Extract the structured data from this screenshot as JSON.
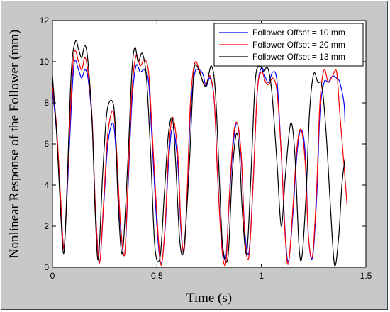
{
  "chart_data": {
    "type": "line",
    "title": "",
    "xlabel": "Time (s)",
    "ylabel": "Nonlinear Response of the Follower (mm)",
    "xlim": [
      0,
      1.5
    ],
    "ylim": [
      0,
      12
    ],
    "xticks": [
      "0",
      "0.5",
      "1",
      "1.5"
    ],
    "xtick_values": [
      0,
      0.5,
      1,
      1.5
    ],
    "yticks": [
      "0",
      "2",
      "4",
      "6",
      "8",
      "10",
      "12"
    ],
    "ytick_values": [
      0,
      2,
      4,
      6,
      8,
      10,
      12
    ],
    "grid": false,
    "legend_position": "top-right",
    "series": [
      {
        "name": "Follower Offset = 10 mm",
        "color": "#0000ff",
        "x": [
          0,
          0.02,
          0.04,
          0.055,
          0.07,
          0.09,
          0.105,
          0.125,
          0.14,
          0.155,
          0.17,
          0.19,
          0.205,
          0.225,
          0.245,
          0.265,
          0.29,
          0.305,
          0.325,
          0.345,
          0.36,
          0.38,
          0.4,
          0.42,
          0.44,
          0.46,
          0.475,
          0.5,
          0.52,
          0.54,
          0.555,
          0.575,
          0.6,
          0.615,
          0.63,
          0.645,
          0.66,
          0.68,
          0.7,
          0.72,
          0.735,
          0.755,
          0.775,
          0.79,
          0.81,
          0.83,
          0.845,
          0.865,
          0.885,
          0.905,
          0.92,
          0.94,
          0.96,
          0.98,
          1.0,
          1.02,
          1.035,
          1.055,
          1.075,
          1.095,
          1.115,
          1.13,
          1.15,
          1.17,
          1.19,
          1.21,
          1.225,
          1.245,
          1.265,
          1.28,
          1.3,
          1.32,
          1.34,
          1.36,
          1.375,
          1.395,
          1.4
        ],
        "y": [
          8.6,
          6.5,
          3.0,
          1.0,
          3.5,
          7.8,
          10.0,
          9.6,
          9.2,
          9.6,
          9.2,
          7.0,
          3.0,
          0.3,
          3.0,
          6.0,
          7.0,
          5.5,
          2.0,
          0.6,
          3.5,
          8.0,
          9.8,
          9.5,
          9.6,
          9.0,
          6.5,
          2.0,
          0.2,
          2.0,
          5.0,
          6.8,
          5.0,
          1.8,
          0.8,
          3.5,
          7.5,
          9.4,
          9.6,
          9.4,
          8.8,
          9.2,
          8.0,
          4.5,
          1.2,
          0.5,
          3.0,
          6.0,
          7.0,
          5.0,
          1.8,
          0.7,
          4.0,
          8.5,
          9.7,
          9.2,
          9.0,
          9.5,
          9.0,
          5.5,
          1.5,
          0.3,
          2.5,
          5.5,
          6.7,
          5.5,
          1.5,
          0.5,
          3.5,
          7.5,
          9.0,
          9.0,
          9.3,
          9.2,
          9.0,
          8.0,
          7.0
        ]
      },
      {
        "name": "Follower Offset = 20 mm",
        "color": "#ff0000",
        "x": [
          0,
          0.02,
          0.04,
          0.055,
          0.07,
          0.09,
          0.105,
          0.125,
          0.14,
          0.155,
          0.17,
          0.19,
          0.205,
          0.225,
          0.245,
          0.265,
          0.29,
          0.305,
          0.325,
          0.345,
          0.36,
          0.38,
          0.4,
          0.42,
          0.44,
          0.46,
          0.475,
          0.5,
          0.52,
          0.54,
          0.555,
          0.575,
          0.6,
          0.615,
          0.63,
          0.645,
          0.66,
          0.68,
          0.7,
          0.72,
          0.735,
          0.755,
          0.775,
          0.79,
          0.81,
          0.83,
          0.845,
          0.865,
          0.885,
          0.905,
          0.92,
          0.94,
          0.96,
          0.98,
          1.0,
          1.02,
          1.035,
          1.055,
          1.075,
          1.095,
          1.115,
          1.13,
          1.15,
          1.17,
          1.19,
          1.21,
          1.225,
          1.245,
          1.265,
          1.28,
          1.3,
          1.32,
          1.34,
          1.36,
          1.375,
          1.395,
          1.41
        ],
        "y": [
          8.8,
          6.8,
          3.2,
          0.9,
          3.8,
          8.5,
          10.5,
          10.0,
          9.6,
          10.2,
          9.5,
          7.2,
          3.0,
          0.2,
          3.2,
          6.5,
          7.6,
          6.0,
          2.2,
          0.6,
          3.8,
          8.5,
          10.3,
          9.8,
          10.1,
          9.5,
          7.0,
          2.5,
          0.1,
          2.2,
          5.5,
          7.3,
          5.5,
          2.0,
          0.8,
          3.8,
          8.0,
          9.9,
          9.7,
          9.0,
          8.9,
          9.3,
          8.0,
          4.5,
          1.0,
          0.2,
          3.2,
          6.3,
          7.0,
          5.2,
          1.5,
          0.5,
          4.0,
          8.5,
          9.5,
          9.0,
          8.9,
          9.2,
          8.5,
          5.5,
          1.3,
          0.2,
          2.8,
          5.8,
          6.7,
          5.0,
          1.5,
          0.6,
          4.0,
          8.0,
          9.6,
          9.0,
          9.3,
          9.5,
          7.5,
          5.0,
          3.0
        ]
      },
      {
        "name": "Follower Offset = 13 mm",
        "color": "#000000",
        "x": [
          0,
          0.02,
          0.04,
          0.055,
          0.07,
          0.09,
          0.11,
          0.125,
          0.14,
          0.155,
          0.17,
          0.19,
          0.205,
          0.22,
          0.24,
          0.26,
          0.285,
          0.3,
          0.315,
          0.335,
          0.36,
          0.38,
          0.395,
          0.41,
          0.43,
          0.45,
          0.47,
          0.49,
          0.515,
          0.535,
          0.555,
          0.575,
          0.59,
          0.61,
          0.63,
          0.655,
          0.675,
          0.69,
          0.71,
          0.735,
          0.76,
          0.78,
          0.8,
          0.815,
          0.84,
          0.86,
          0.88,
          0.895,
          0.91,
          0.93,
          0.95,
          0.97,
          0.99,
          1.01,
          1.03,
          1.05,
          1.075,
          1.095,
          1.115,
          1.14,
          1.16,
          1.18,
          1.195,
          1.215,
          1.23,
          1.25,
          1.27,
          1.29,
          1.31,
          1.33,
          1.35,
          1.37,
          1.385,
          1.4
        ],
        "y": [
          9.3,
          6.5,
          2.5,
          0.7,
          4.0,
          9.5,
          11.0,
          10.6,
          10.2,
          10.8,
          10.0,
          7.0,
          2.5,
          0.4,
          4.5,
          7.5,
          8.1,
          7.0,
          3.0,
          0.7,
          5.0,
          9.5,
          10.7,
          10.0,
          10.4,
          9.2,
          5.5,
          1.0,
          0.5,
          3.5,
          6.5,
          7.2,
          5.0,
          1.2,
          1.0,
          5.0,
          9.3,
          9.8,
          9.3,
          8.8,
          9.8,
          8.5,
          4.0,
          1.0,
          0.5,
          4.5,
          6.5,
          5.5,
          2.5,
          0.7,
          4.5,
          9.0,
          9.8,
          9.5,
          9.7,
          8.5,
          5.0,
          2.0,
          4.5,
          7.0,
          5.5,
          1.0,
          0.6,
          3.8,
          7.5,
          9.4,
          9.0,
          8.8,
          6.5,
          3.0,
          0.1,
          1.5,
          4.0,
          5.3
        ]
      }
    ]
  }
}
